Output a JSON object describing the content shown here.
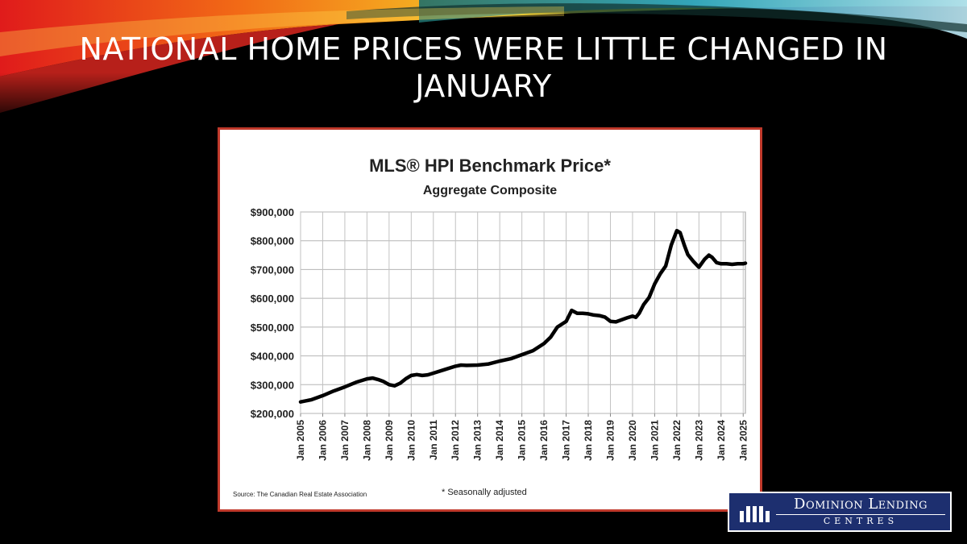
{
  "slide": {
    "title": "NATIONAL HOME PRICES WERE LITTLE CHANGED IN JANUARY"
  },
  "logo": {
    "line1": "Dominion Lending",
    "line2": "CENTRES"
  },
  "colors": {
    "frame_border": "#c0392b",
    "line": "#000000",
    "logo_bg": "#1d2f6f"
  },
  "chart_data": {
    "type": "line",
    "title": "MLS® HPI Benchmark Price*",
    "subtitle": "Aggregate Composite",
    "source": "Source: The Canadian Real Estate Association",
    "footnote": "* Seasonally adjusted",
    "ylim": [
      200000,
      900000
    ],
    "yticks": [
      200000,
      300000,
      400000,
      500000,
      600000,
      700000,
      800000,
      900000
    ],
    "ytick_labels": [
      "$200,000",
      "$300,000",
      "$400,000",
      "$500,000",
      "$600,000",
      "$700,000",
      "$800,000",
      "$900,000"
    ],
    "xlim": [
      2005,
      2025.1
    ],
    "xticks": [
      2005,
      2006,
      2007,
      2008,
      2009,
      2010,
      2011,
      2012,
      2013,
      2014,
      2015,
      2016,
      2017,
      2018,
      2019,
      2020,
      2021,
      2022,
      2023,
      2024,
      2025
    ],
    "xtick_labels": [
      "Jan 2005",
      "Jan 2006",
      "Jan 2007",
      "Jan 2008",
      "Jan 2009",
      "Jan 2010",
      "Jan 2011",
      "Jan 2012",
      "Jan 2013",
      "Jan 2014",
      "Jan 2015",
      "Jan 2016",
      "Jan 2017",
      "Jan 2018",
      "Jan 2019",
      "Jan 2020",
      "Jan 2021",
      "Jan 2022",
      "Jan 2023",
      "Jan 2024",
      "Jan 2025"
    ],
    "grid": true,
    "series": [
      {
        "points": [
          [
            2005,
            240000
          ],
          [
            2005.5,
            248000
          ],
          [
            2006,
            262000
          ],
          [
            2006.5,
            278000
          ],
          [
            2007,
            292000
          ],
          [
            2007.5,
            308000
          ],
          [
            2008,
            320000
          ],
          [
            2008.25,
            323000
          ],
          [
            2008.5,
            318000
          ],
          [
            2008.75,
            311000
          ],
          [
            2009,
            300000
          ],
          [
            2009.25,
            296000
          ],
          [
            2009.5,
            305000
          ],
          [
            2009.75,
            320000
          ],
          [
            2010,
            332000
          ],
          [
            2010.25,
            335000
          ],
          [
            2010.5,
            332000
          ],
          [
            2010.75,
            334000
          ],
          [
            2011,
            340000
          ],
          [
            2011.5,
            352000
          ],
          [
            2012,
            364000
          ],
          [
            2012.25,
            368000
          ],
          [
            2012.5,
            367000
          ],
          [
            2013,
            368000
          ],
          [
            2013.5,
            372000
          ],
          [
            2014,
            382000
          ],
          [
            2014.5,
            390000
          ],
          [
            2015,
            404000
          ],
          [
            2015.5,
            418000
          ],
          [
            2016,
            443000
          ],
          [
            2016.3,
            465000
          ],
          [
            2016.6,
            500000
          ],
          [
            2017,
            520000
          ],
          [
            2017.25,
            558000
          ],
          [
            2017.5,
            548000
          ],
          [
            2017.75,
            548000
          ],
          [
            2018,
            546000
          ],
          [
            2018.25,
            542000
          ],
          [
            2018.5,
            540000
          ],
          [
            2018.75,
            535000
          ],
          [
            2019,
            520000
          ],
          [
            2019.25,
            518000
          ],
          [
            2019.5,
            525000
          ],
          [
            2019.75,
            532000
          ],
          [
            2020,
            538000
          ],
          [
            2020.15,
            534000
          ],
          [
            2020.3,
            548000
          ],
          [
            2020.5,
            578000
          ],
          [
            2020.75,
            603000
          ],
          [
            2021,
            650000
          ],
          [
            2021.25,
            685000
          ],
          [
            2021.5,
            712000
          ],
          [
            2021.75,
            785000
          ],
          [
            2022,
            835000
          ],
          [
            2022.15,
            828000
          ],
          [
            2022.35,
            782000
          ],
          [
            2022.5,
            752000
          ],
          [
            2022.75,
            728000
          ],
          [
            2023,
            708000
          ],
          [
            2023.25,
            735000
          ],
          [
            2023.45,
            750000
          ],
          [
            2023.6,
            742000
          ],
          [
            2023.8,
            724000
          ],
          [
            2024,
            720000
          ],
          [
            2024.25,
            720000
          ],
          [
            2024.5,
            718000
          ],
          [
            2024.75,
            720000
          ],
          [
            2025,
            720000
          ],
          [
            2025.1,
            722000
          ]
        ]
      }
    ]
  }
}
